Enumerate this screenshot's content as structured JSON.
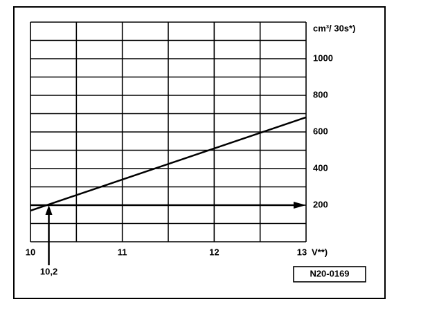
{
  "chart_data": {
    "type": "line",
    "y_axis_label": "cm³/ 30s*)",
    "x_axis_label": "V**)",
    "x": [
      10,
      13
    ],
    "series": [
      {
        "color": "#000000",
        "values": [
          170,
          680
        ]
      }
    ],
    "xlim": [
      10,
      13
    ],
    "ylim": [
      0,
      1200
    ],
    "xticks": [
      10,
      11,
      12,
      13
    ],
    "yticks": [
      200,
      400,
      600,
      800,
      1000
    ],
    "xgrid": [
      10,
      10.5,
      11,
      11.5,
      12,
      12.5,
      13
    ],
    "ygrid": [
      0,
      100,
      200,
      300,
      400,
      500,
      600,
      700,
      800,
      900,
      1000,
      1100,
      1200
    ],
    "marker": {
      "x": {
        "value": 10.2,
        "label": "10,2"
      },
      "y": 200
    },
    "reference": "N20-0169",
    "grid": true
  }
}
